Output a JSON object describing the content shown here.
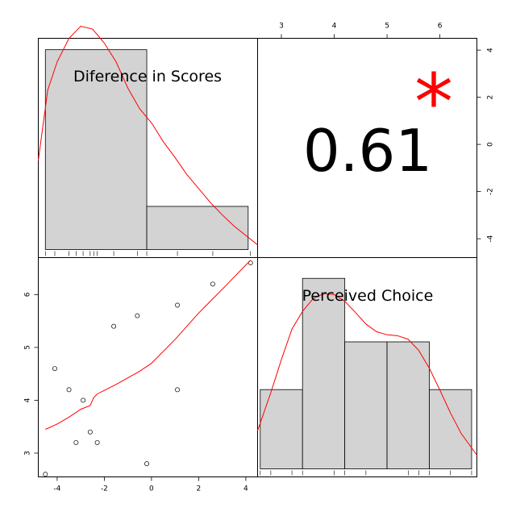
{
  "chart_data": {
    "type": "scatter",
    "variables": [
      "Diference in Scores",
      "Perceived Choice"
    ],
    "correlation": {
      "value": "0.61",
      "significance": "*"
    },
    "diff_axis_ticks": [
      "-4",
      "-2",
      "0",
      "2",
      "4"
    ],
    "choice_axis_ticks": [
      "3",
      "4",
      "5",
      "6"
    ],
    "diff_axis_range": [
      -4.8,
      4.5
    ],
    "choice_axis_range": [
      2.55,
      6.7
    ],
    "histogram_diff": {
      "bin_edges": [
        -4.5,
        -0.2,
        4.1
      ],
      "density": [
        0.213,
        0.046
      ],
      "ylim": [
        0,
        0.22
      ]
    },
    "histogram_choice": {
      "bin_edges": [
        2.6,
        3.4,
        4.2,
        5.0,
        5.8,
        6.6
      ],
      "density": [
        0.156,
        0.375,
        0.25,
        0.25,
        0.156
      ],
      "ylim": [
        0,
        0.4
      ]
    },
    "density_diff": [
      [
        -4.8,
        0.095
      ],
      [
        -4.4,
        0.17
      ],
      [
        -4.0,
        0.2
      ],
      [
        -3.5,
        0.225
      ],
      [
        -3.0,
        0.238
      ],
      [
        -2.5,
        0.235
      ],
      [
        -2.0,
        0.22
      ],
      [
        -1.5,
        0.2
      ],
      [
        -1.0,
        0.172
      ],
      [
        -0.5,
        0.15
      ],
      [
        0.0,
        0.135
      ],
      [
        0.5,
        0.115
      ],
      [
        1.0,
        0.098
      ],
      [
        1.5,
        0.08
      ],
      [
        2.0,
        0.065
      ],
      [
        2.5,
        0.05
      ],
      [
        3.0,
        0.037
      ],
      [
        3.5,
        0.025
      ],
      [
        4.0,
        0.015
      ],
      [
        4.5,
        0.005
      ]
    ],
    "density_choice": [
      [
        2.55,
        0.075
      ],
      [
        2.8,
        0.15
      ],
      [
        3.0,
        0.215
      ],
      [
        3.2,
        0.275
      ],
      [
        3.4,
        0.31
      ],
      [
        3.6,
        0.335
      ],
      [
        3.8,
        0.345
      ],
      [
        4.0,
        0.343
      ],
      [
        4.2,
        0.33
      ],
      [
        4.4,
        0.308
      ],
      [
        4.6,
        0.285
      ],
      [
        4.8,
        0.27
      ],
      [
        5.0,
        0.264
      ],
      [
        5.2,
        0.262
      ],
      [
        5.4,
        0.255
      ],
      [
        5.6,
        0.233
      ],
      [
        5.8,
        0.198
      ],
      [
        6.0,
        0.155
      ],
      [
        6.2,
        0.11
      ],
      [
        6.4,
        0.07
      ],
      [
        6.7,
        0.027
      ]
    ],
    "rug_diff": [
      -4.5,
      -4.1,
      -3.5,
      -3.2,
      -2.9,
      -2.6,
      -2.45,
      -2.3,
      -1.6,
      -0.6,
      -0.2,
      1.1,
      2.6,
      4.2
    ],
    "rug_choice": [
      2.6,
      2.8,
      3.2,
      3.4,
      4.0,
      4.2,
      4.6,
      5.4,
      5.6,
      5.8,
      6.2,
      6.6
    ],
    "scatter_points": [
      {
        "x": -4.5,
        "y": 2.6
      },
      {
        "x": -4.1,
        "y": 4.6
      },
      {
        "x": -3.5,
        "y": 4.2
      },
      {
        "x": -3.2,
        "y": 3.2
      },
      {
        "x": -2.9,
        "y": 4.0
      },
      {
        "x": -2.6,
        "y": 3.4
      },
      {
        "x": -2.3,
        "y": 3.2
      },
      {
        "x": -1.6,
        "y": 5.4
      },
      {
        "x": -0.6,
        "y": 5.6
      },
      {
        "x": -0.2,
        "y": 2.8
      },
      {
        "x": 1.1,
        "y": 5.8
      },
      {
        "x": 1.1,
        "y": 4.2
      },
      {
        "x": 2.6,
        "y": 6.2
      },
      {
        "x": 4.2,
        "y": 6.6
      }
    ],
    "smooth_line": [
      [
        -4.5,
        3.45
      ],
      [
        -4.0,
        3.55
      ],
      [
        -3.5,
        3.68
      ],
      [
        -3.0,
        3.83
      ],
      [
        -2.6,
        3.9
      ],
      [
        -2.45,
        4.05
      ],
      [
        -2.3,
        4.12
      ],
      [
        -1.5,
        4.3
      ],
      [
        -0.5,
        4.55
      ],
      [
        0.0,
        4.7
      ],
      [
        1.0,
        5.15
      ],
      [
        2.0,
        5.65
      ],
      [
        3.0,
        6.1
      ],
      [
        4.2,
        6.65
      ]
    ]
  }
}
